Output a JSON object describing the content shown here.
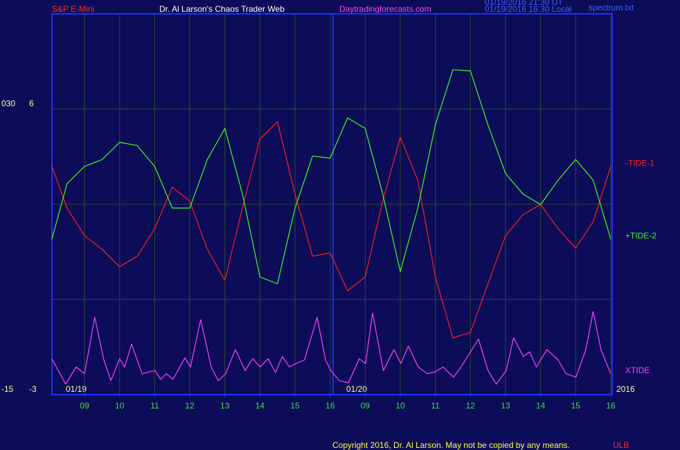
{
  "header": {
    "symbol": "S&P E-Mini",
    "site_title": "Dr. Al Larson's Chaos Trader Web",
    "site_url": "Daytradingforecasts.com",
    "timestamp_ut": "01/19/2016 21:30 UT",
    "timestamp_local": "01/19/2016 16:30 Local",
    "file": "spectrum.txt"
  },
  "footer": {
    "copyright": "Copyright 2016, Dr. Al Larson. May not be copied by any means.",
    "code": "ULB"
  },
  "chart_data": {
    "type": "line",
    "date_labels": [
      "01/19",
      "01/20"
    ],
    "year_label": "2016",
    "xlim": [
      0.07,
      16.04
    ],
    "xticks": [
      {
        "value": 1,
        "label": "09"
      },
      {
        "value": 2,
        "label": "10"
      },
      {
        "value": 3,
        "label": "11"
      },
      {
        "value": 4,
        "label": "12"
      },
      {
        "value": 5,
        "label": "13"
      },
      {
        "value": 6,
        "label": "14"
      },
      {
        "value": 7,
        "label": "15"
      },
      {
        "value": 8,
        "label": "16"
      },
      {
        "value": 9,
        "label": "09"
      },
      {
        "value": 10,
        "label": "10"
      },
      {
        "value": 11,
        "label": "11"
      },
      {
        "value": 12,
        "label": "12"
      },
      {
        "value": 13,
        "label": "13"
      },
      {
        "value": 14,
        "label": "14"
      },
      {
        "value": 15,
        "label": "15"
      },
      {
        "value": 16,
        "label": "16"
      }
    ],
    "ylim": [
      -3,
      9
    ],
    "yticks": [
      -3,
      6
    ],
    "ygrid": [
      0,
      3
    ],
    "y2lim": [
      -15,
      45
    ],
    "y2ticks": [
      -15,
      {
        "value": 30,
        "label": "030"
      }
    ],
    "grid": true,
    "series": [
      {
        "name": "-TIDE-1",
        "color": "#ff2020",
        "x": [
          0.07,
          0.5,
          1,
          1.5,
          2,
          2.5,
          3,
          3.5,
          4,
          4.5,
          5,
          5.5,
          6,
          6.5,
          7,
          7.5,
          8,
          8.5,
          9,
          9.5,
          10,
          10.5,
          11,
          11.5,
          12,
          12.5,
          13,
          13.5,
          14,
          14.5,
          15,
          15.5,
          16
        ],
        "values": [
          4.19,
          2.88,
          2.01,
          1.58,
          1.03,
          1.36,
          2.23,
          3.54,
          3.1,
          1.58,
          0.6,
          2.88,
          5.06,
          5.6,
          3.32,
          1.36,
          1.47,
          0.27,
          0.71,
          3.1,
          5.11,
          3.76,
          0.71,
          -1.21,
          -1.04,
          0.49,
          2.01,
          2.67,
          2.99,
          2.23,
          1.62,
          2.45,
          4.19
        ]
      },
      {
        "name": "+TIDE-2",
        "color": "#40ff20",
        "x": [
          0.07,
          0.5,
          1,
          1.5,
          2,
          2.5,
          3,
          3.5,
          4,
          4.5,
          5,
          5.5,
          6,
          6.5,
          7,
          7.5,
          8,
          8.5,
          9,
          9.5,
          10,
          10.5,
          11,
          11.5,
          12,
          12.5,
          13,
          13.5,
          14,
          14.5,
          15,
          15.5,
          16
        ],
        "values": [
          1.9,
          3.65,
          4.19,
          4.41,
          4.95,
          4.85,
          4.19,
          2.88,
          2.88,
          4.41,
          5.39,
          3.32,
          0.71,
          0.49,
          2.88,
          4.52,
          4.45,
          5.72,
          5.39,
          3.32,
          0.88,
          2.88,
          5.5,
          7.24,
          7.2,
          5.5,
          3.97,
          3.32,
          2.99,
          3.76,
          4.41,
          3.76,
          1.9
        ]
      },
      {
        "name": "XTIDE",
        "color": "#ff40ff",
        "x": [
          0.07,
          0.46,
          0.76,
          1.0,
          1.29,
          1.55,
          1.75,
          2.0,
          2.14,
          2.34,
          2.64,
          3.01,
          3.17,
          3.33,
          3.52,
          3.86,
          4.02,
          4.31,
          4.61,
          4.81,
          5.02,
          5.3,
          5.58,
          5.79,
          6.01,
          6.23,
          6.44,
          6.64,
          6.84,
          7.02,
          7.27,
          7.63,
          7.87,
          8.02,
          8.26,
          8.52,
          8.83,
          9.01,
          9.21,
          9.52,
          9.82,
          10.02,
          10.23,
          10.51,
          10.77,
          11.0,
          11.22,
          11.52,
          11.73,
          12.23,
          12.5,
          12.74,
          13.02,
          13.23,
          13.51,
          13.69,
          13.88,
          14.18,
          14.5,
          14.73,
          15.01,
          15.29,
          15.5,
          15.72,
          16.0
        ],
        "values": [
          -1.87,
          -2.67,
          -2.13,
          -2.34,
          -0.56,
          -1.91,
          -2.56,
          -1.87,
          -2.13,
          -1.41,
          -2.34,
          -2.24,
          -2.52,
          -2.34,
          -2.52,
          -1.84,
          -2.13,
          -0.64,
          -2.13,
          -2.56,
          -2.34,
          -1.58,
          -2.24,
          -1.87,
          -2.13,
          -1.87,
          -2.3,
          -1.8,
          -2.13,
          -2.02,
          -1.91,
          -0.56,
          -1.91,
          -2.24,
          -2.56,
          -2.63,
          -1.87,
          -2.02,
          -0.43,
          -2.24,
          -1.58,
          -2.02,
          -1.47,
          -2.13,
          -2.34,
          -2.28,
          -2.13,
          -2.45,
          -2.13,
          -1.25,
          -2.24,
          -2.67,
          -2.24,
          -1.21,
          -1.8,
          -1.65,
          -2.13,
          -1.58,
          -1.91,
          -2.34,
          -2.45,
          -1.58,
          -0.38,
          -1.58,
          -2.34
        ]
      }
    ]
  }
}
